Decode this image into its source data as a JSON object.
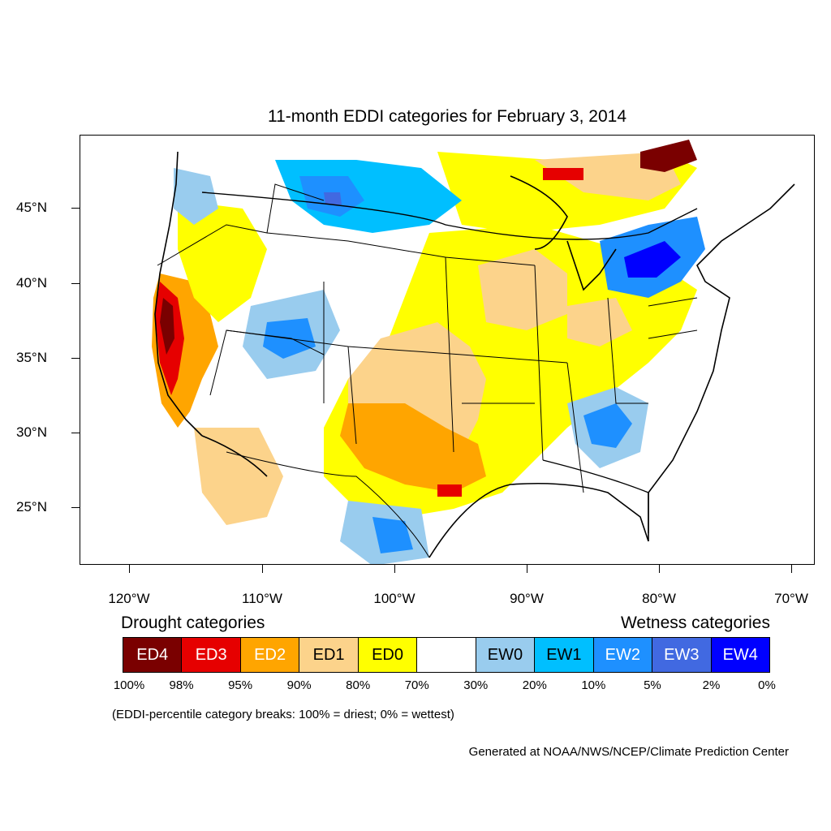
{
  "title": "11-month EDDI categories for February 3, 2014",
  "axes": {
    "lat_labels": [
      "45°N",
      "40°N",
      "35°N",
      "30°N",
      "25°N"
    ],
    "lon_labels": [
      "120°W",
      "110°W",
      "100°W",
      "90°W",
      "80°W",
      "70°W"
    ]
  },
  "legend": {
    "drought_heading": "Drought categories",
    "wetness_heading": "Wetness categories",
    "categories": [
      {
        "label": "ED4",
        "color": "#7a0000",
        "text_color": "#ffffff"
      },
      {
        "label": "ED3",
        "color": "#e60000",
        "text_color": "#ffffff"
      },
      {
        "label": "ED2",
        "color": "#ffa500",
        "text_color": "#ffffff"
      },
      {
        "label": "ED1",
        "color": "#fcd38b",
        "text_color": "#000000"
      },
      {
        "label": "ED0",
        "color": "#ffff00",
        "text_color": "#000000"
      },
      {
        "label": "",
        "color": "#ffffff",
        "text_color": "#000000"
      },
      {
        "label": "EW0",
        "color": "#99ccee",
        "text_color": "#000000"
      },
      {
        "label": "EW1",
        "color": "#00bfff",
        "text_color": "#000000"
      },
      {
        "label": "EW2",
        "color": "#1e90ff",
        "text_color": "#ffffff"
      },
      {
        "label": "EW3",
        "color": "#4169e1",
        "text_color": "#ffffff"
      },
      {
        "label": "EW4",
        "color": "#0000ff",
        "text_color": "#ffffff"
      }
    ],
    "percent_breaks": [
      "100%",
      "98%",
      "95%",
      "90%",
      "80%",
      "70%",
      "30%",
      "20%",
      "10%",
      "5%",
      "2%",
      "0%"
    ]
  },
  "note": "(EDDI-percentile category breaks: 100% = driest; 0% = wettest)",
  "credit": "Generated at NOAA/NWS/NCEP/Climate Prediction Center"
}
